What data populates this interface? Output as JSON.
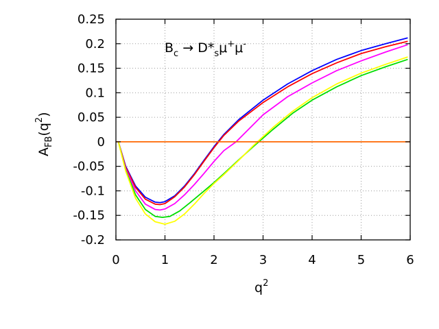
{
  "chart_data": {
    "type": "line",
    "title_parts": {
      "b": "B",
      "c": "c",
      "arrow": " → D*",
      "s": "s",
      "mu1": "μ",
      "plus": "+",
      "mu2": "μ",
      "minus": "-"
    },
    "xlabel": {
      "base": "q",
      "sup": "2"
    },
    "ylabel": {
      "base": "A",
      "sub": "FB",
      "mid": "(q",
      "sup": "2",
      "end": ")"
    },
    "xlim": [
      0,
      6
    ],
    "ylim": [
      -0.2,
      0.25
    ],
    "xticks": [
      "0",
      "1",
      "2",
      "3",
      "4",
      "5",
      "6"
    ],
    "yticks": [
      "-0.2",
      "-0.15",
      "-0.1",
      "-0.05",
      "0",
      "0.05",
      "0.1",
      "0.15",
      "0.2",
      "0.25"
    ],
    "grid": true,
    "series": [
      {
        "color": "#0000ff",
        "x": [
          0.05,
          0.2,
          0.4,
          0.6,
          0.8,
          0.9,
          1.0,
          1.2,
          1.4,
          1.6,
          1.8,
          2.0,
          2.2,
          2.5,
          3.0,
          3.5,
          4.0,
          4.5,
          5.0,
          5.5,
          5.95
        ],
        "y": [
          0,
          -0.05,
          -0.09,
          -0.113,
          -0.123,
          -0.124,
          -0.122,
          -0.11,
          -0.09,
          -0.065,
          -0.037,
          -0.01,
          0.015,
          0.045,
          0.085,
          0.118,
          0.145,
          0.168,
          0.186,
          0.2,
          0.212
        ]
      },
      {
        "color": "#ff0000",
        "x": [
          0.05,
          0.2,
          0.4,
          0.6,
          0.8,
          0.9,
          1.0,
          1.2,
          1.4,
          1.6,
          1.8,
          2.0,
          2.2,
          2.5,
          3.0,
          3.5,
          4.0,
          4.5,
          5.0,
          5.5,
          5.95
        ],
        "y": [
          0,
          -0.052,
          -0.093,
          -0.117,
          -0.127,
          -0.128,
          -0.126,
          -0.112,
          -0.092,
          -0.067,
          -0.039,
          -0.012,
          0.013,
          0.042,
          0.08,
          0.112,
          0.139,
          0.161,
          0.18,
          0.194,
          0.205
        ]
      },
      {
        "color": "#ff00ff",
        "x": [
          0.05,
          0.2,
          0.4,
          0.6,
          0.8,
          0.9,
          1.0,
          1.2,
          1.4,
          1.6,
          1.8,
          2.0,
          2.2,
          2.45,
          3.0,
          3.5,
          4.0,
          4.5,
          5.0,
          5.5,
          5.95
        ],
        "y": [
          0,
          -0.055,
          -0.1,
          -0.127,
          -0.138,
          -0.139,
          -0.137,
          -0.126,
          -0.108,
          -0.087,
          -0.064,
          -0.04,
          -0.018,
          0.0,
          0.055,
          0.092,
          0.12,
          0.145,
          0.165,
          0.183,
          0.198
        ]
      },
      {
        "color": "#00dd00",
        "x": [
          0.05,
          0.2,
          0.4,
          0.6,
          0.8,
          0.95,
          1.1,
          1.3,
          1.5,
          1.8,
          2.0,
          2.2,
          2.5,
          2.8,
          3.2,
          3.6,
          4.0,
          4.5,
          5.0,
          5.5,
          5.95
        ],
        "y": [
          0,
          -0.058,
          -0.108,
          -0.138,
          -0.152,
          -0.154,
          -0.152,
          -0.141,
          -0.125,
          -0.1,
          -0.083,
          -0.065,
          -0.037,
          -0.01,
          0.025,
          0.058,
          0.085,
          0.112,
          0.135,
          0.153,
          0.168
        ]
      },
      {
        "color": "#ffff00",
        "x": [
          0.05,
          0.2,
          0.4,
          0.6,
          0.8,
          1.0,
          1.2,
          1.4,
          1.6,
          1.8,
          2.0,
          2.2,
          2.5,
          2.8,
          3.2,
          3.6,
          4.0,
          4.5,
          5.0,
          5.5,
          5.95
        ],
        "y": [
          0,
          -0.06,
          -0.115,
          -0.147,
          -0.163,
          -0.168,
          -0.162,
          -0.147,
          -0.127,
          -0.105,
          -0.085,
          -0.067,
          -0.038,
          -0.008,
          0.029,
          0.062,
          0.09,
          0.118,
          0.14,
          0.158,
          0.173
        ]
      },
      {
        "color": "#ff6600",
        "x": [
          0,
          6
        ],
        "y": [
          0,
          0
        ]
      }
    ]
  }
}
